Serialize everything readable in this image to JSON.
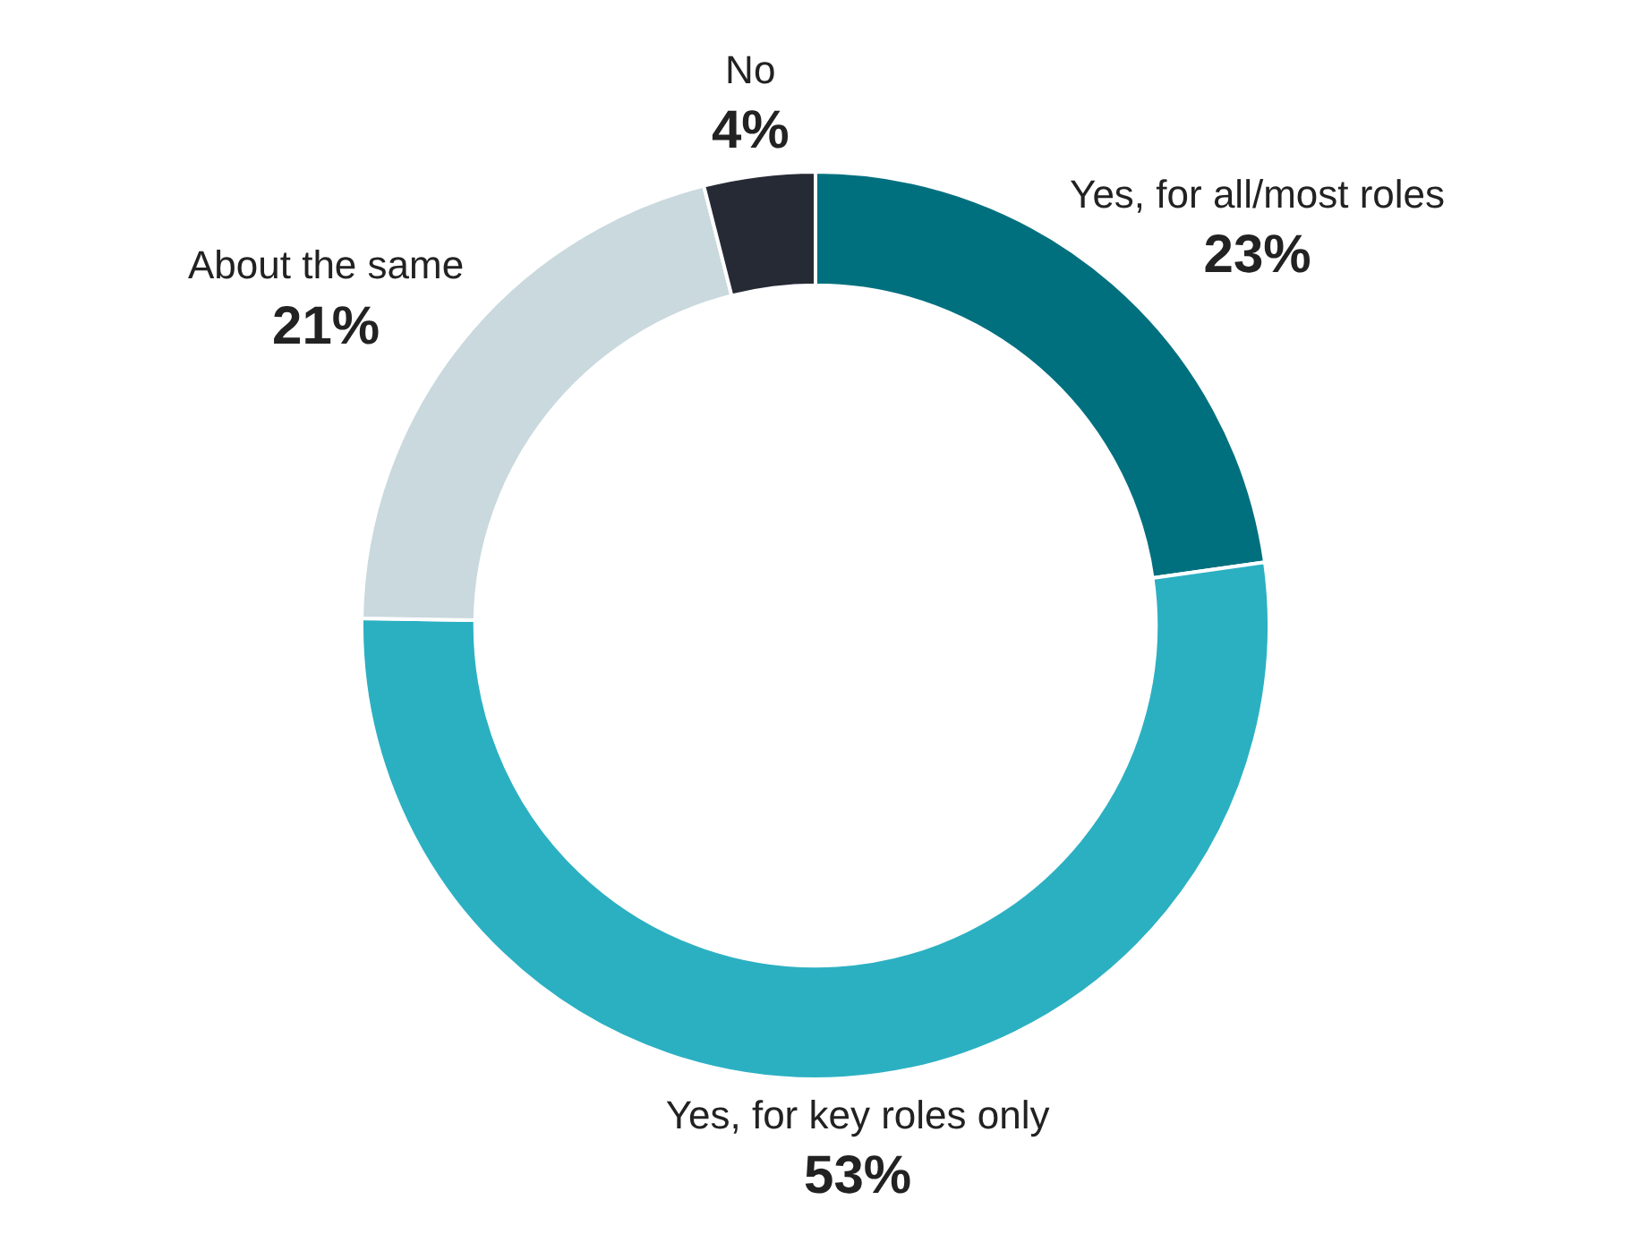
{
  "chart_data": {
    "type": "donut",
    "categories": [
      "Yes, for all/most roles",
      "Yes, for key roles only",
      "About the same",
      "No"
    ],
    "values": [
      23,
      53,
      21,
      4
    ],
    "value_labels": [
      "23%",
      "53%",
      "21%",
      "4%"
    ],
    "colors": [
      "#00707f",
      "#2bb0c2",
      "#c9d9de",
      "#262a35"
    ],
    "legend": false
  }
}
